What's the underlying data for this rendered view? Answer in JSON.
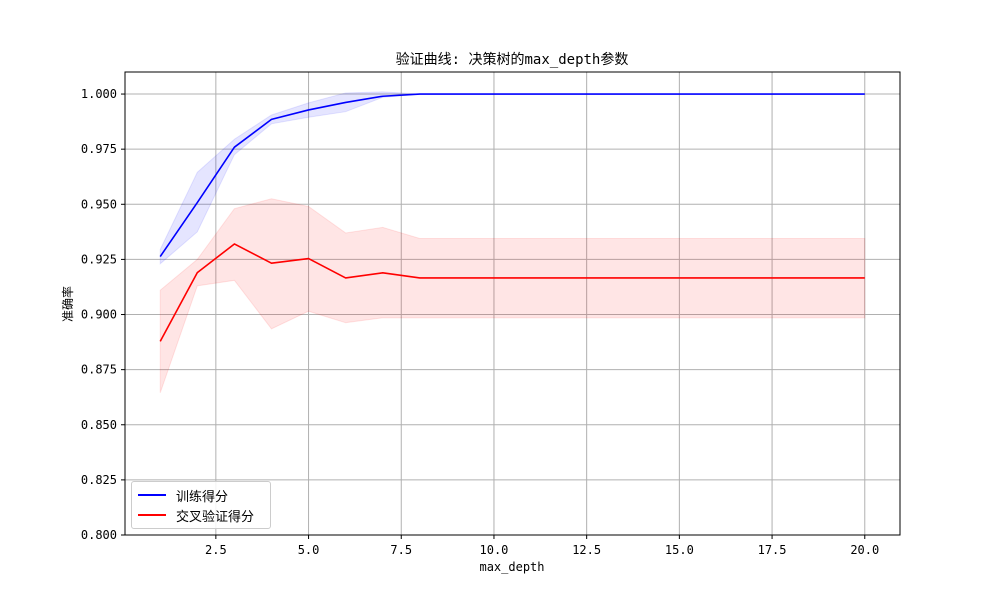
{
  "chart_data": {
    "type": "line",
    "title": "验证曲线: 决策树的max_depth参数",
    "xlabel": "max_depth",
    "ylabel": "准确率",
    "xlim": [
      0.05,
      20.95
    ],
    "ylim": [
      0.8,
      1.01
    ],
    "x_ticks": [
      2.5,
      5.0,
      7.5,
      10.0,
      12.5,
      15.0,
      17.5,
      20.0
    ],
    "x_tick_labels": [
      "2.5",
      "5.0",
      "7.5",
      "10.0",
      "12.5",
      "15.0",
      "17.5",
      "20.0"
    ],
    "y_ticks": [
      0.8,
      0.825,
      0.85,
      0.875,
      0.9,
      0.925,
      0.95,
      0.975,
      1.0
    ],
    "y_tick_labels": [
      "0.800",
      "0.825",
      "0.850",
      "0.875",
      "0.900",
      "0.925",
      "0.950",
      "0.975",
      "1.000"
    ],
    "grid": true,
    "legend_position": "lower-left",
    "x": [
      1,
      2,
      3,
      4,
      5,
      6,
      7,
      8,
      9,
      10,
      11,
      12,
      13,
      14,
      15,
      16,
      17,
      18,
      19,
      20
    ],
    "series": [
      {
        "name": "训练得分",
        "color": "#0000ff",
        "band_color": "#0000ff",
        "values": [
          0.9263,
          0.9508,
          0.9759,
          0.9885,
          0.9928,
          0.9962,
          0.999,
          1.0,
          1.0,
          1.0,
          1.0,
          1.0,
          1.0,
          1.0,
          1.0,
          1.0,
          1.0,
          1.0,
          1.0,
          1.0
        ],
        "band_lower": [
          0.923,
          0.9375,
          0.9725,
          0.9865,
          0.9895,
          0.992,
          0.9985,
          1.0,
          1.0,
          1.0,
          1.0,
          1.0,
          1.0,
          1.0,
          1.0,
          1.0,
          1.0,
          1.0,
          1.0,
          1.0
        ],
        "band_upper": [
          0.9295,
          0.9645,
          0.9795,
          0.9905,
          0.996,
          1.0005,
          1.001,
          1.0,
          1.0,
          1.0,
          1.0,
          1.0,
          1.0,
          1.0,
          1.0,
          1.0,
          1.0,
          1.0,
          1.0,
          1.0
        ]
      },
      {
        "name": "交叉验证得分",
        "color": "#ff0000",
        "band_color": "#ff0000",
        "values": [
          0.8878,
          0.919,
          0.932,
          0.9233,
          0.9254,
          0.9166,
          0.9189,
          0.9166,
          0.9166,
          0.9166,
          0.9166,
          0.9166,
          0.9166,
          0.9166,
          0.9166,
          0.9166,
          0.9166,
          0.9166,
          0.9166,
          0.9166
        ],
        "band_lower": [
          0.8645,
          0.913,
          0.9155,
          0.8935,
          0.9015,
          0.8963,
          0.8985,
          0.8985,
          0.8985,
          0.8985,
          0.8985,
          0.8985,
          0.8985,
          0.8985,
          0.8985,
          0.8985,
          0.8985,
          0.8985,
          0.8985,
          0.8985
        ],
        "band_upper": [
          0.911,
          0.925,
          0.948,
          0.9525,
          0.949,
          0.937,
          0.9395,
          0.9345,
          0.9345,
          0.9345,
          0.9345,
          0.9345,
          0.9345,
          0.9345,
          0.9345,
          0.9345,
          0.9345,
          0.9345,
          0.9345,
          0.9345
        ]
      }
    ]
  }
}
